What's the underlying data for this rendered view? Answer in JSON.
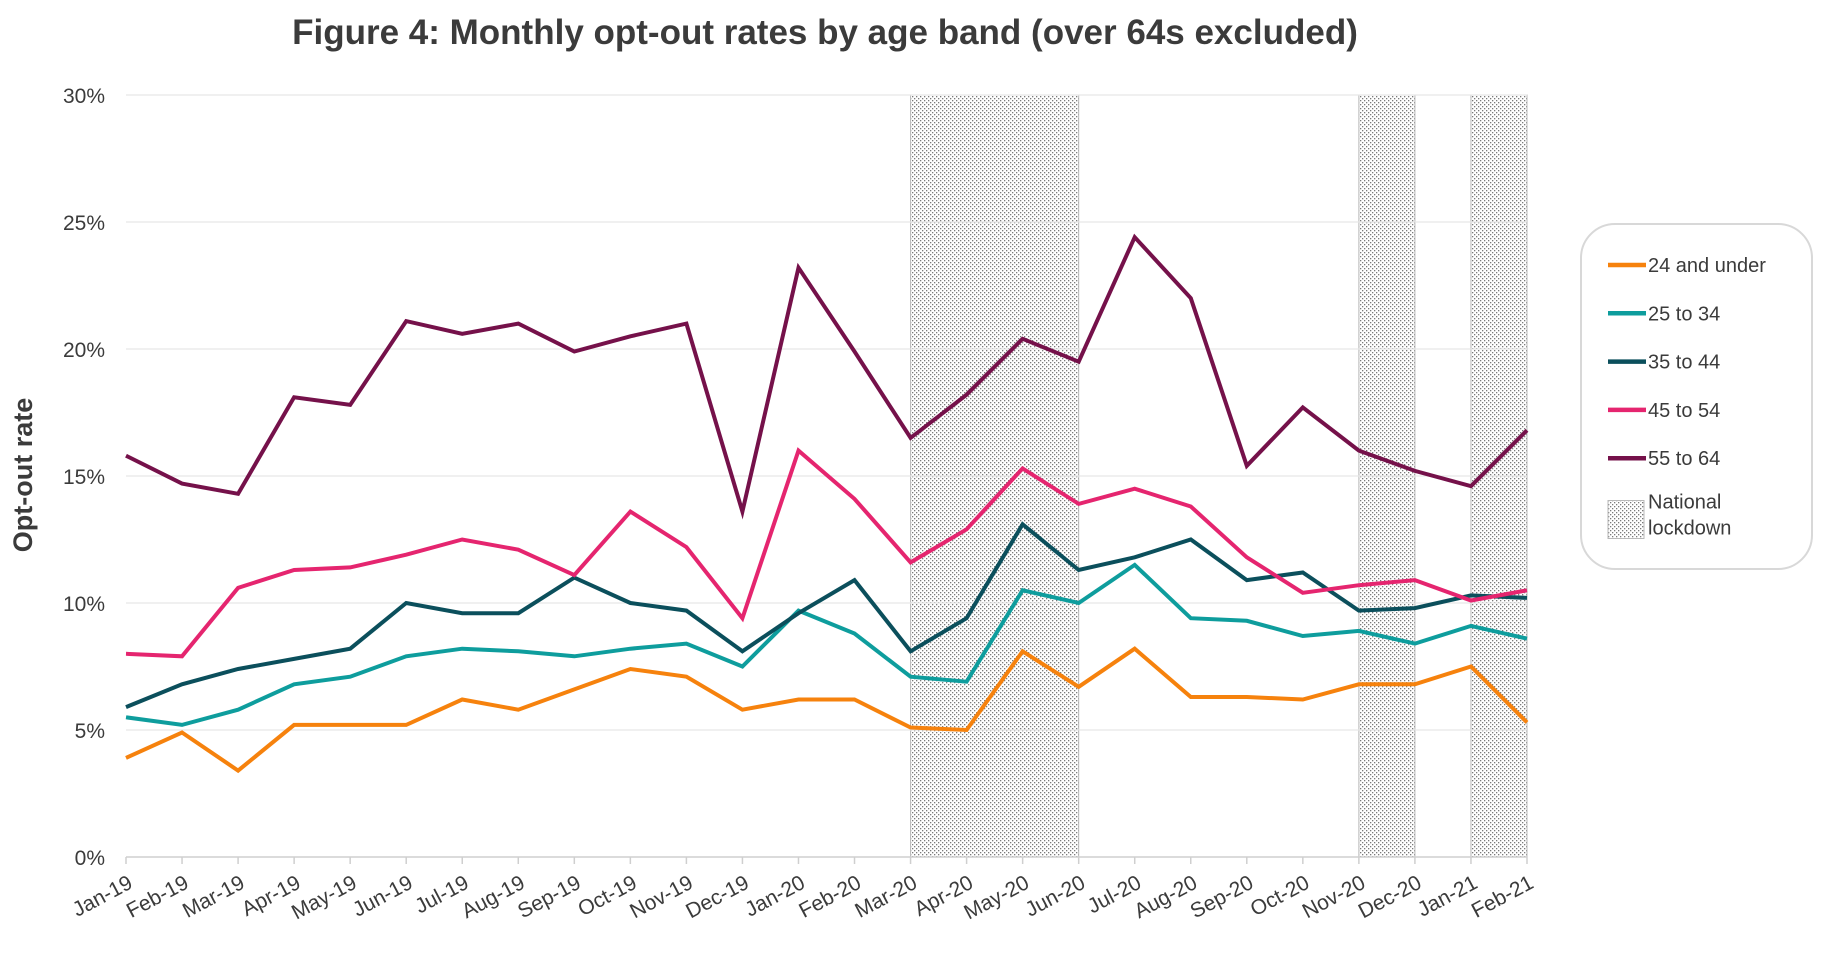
{
  "chart_data": {
    "type": "line",
    "title": "Figure 4: Monthly opt-out rates by age band (over 64s excluded)",
    "xlabel": "",
    "ylabel": "Opt-out rate",
    "ylim": [
      0,
      30
    ],
    "y_ticks": [
      "0%",
      "5%",
      "10%",
      "15%",
      "20%",
      "25%",
      "30%"
    ],
    "y_tick_values": [
      0,
      5,
      10,
      15,
      20,
      25,
      30
    ],
    "grid": "horizontal",
    "legend_position": "right",
    "categories": [
      "Jan-19",
      "Feb-19",
      "Mar-19",
      "Apr-19",
      "May-19",
      "Jun-19",
      "Jul-19",
      "Aug-19",
      "Sep-19",
      "Oct-19",
      "Nov-19",
      "Dec-19",
      "Jan-20",
      "Feb-20",
      "Mar-20",
      "Apr-20",
      "May-20",
      "Jun-20",
      "Jul-20",
      "Aug-20",
      "Sep-20",
      "Oct-20",
      "Nov-20",
      "Dec-20",
      "Jan-21",
      "Feb-21"
    ],
    "series": [
      {
        "name": "24 and under",
        "color": "#F6820D",
        "values": [
          3.9,
          4.9,
          3.4,
          5.2,
          5.2,
          5.2,
          6.2,
          5.8,
          6.6,
          7.4,
          7.1,
          5.8,
          6.2,
          6.2,
          5.1,
          5.0,
          8.1,
          6.7,
          8.2,
          6.3,
          6.3,
          6.2,
          6.8,
          6.8,
          7.5,
          5.3
        ]
      },
      {
        "name": "25 to 34",
        "color": "#0E9D9D",
        "values": [
          5.5,
          5.2,
          5.8,
          6.8,
          7.1,
          7.9,
          8.2,
          8.1,
          7.9,
          8.2,
          8.4,
          7.5,
          9.7,
          8.8,
          7.1,
          6.9,
          10.5,
          10.0,
          11.5,
          9.4,
          9.3,
          8.7,
          8.9,
          8.4,
          9.1,
          8.6
        ]
      },
      {
        "name": "35 to 44",
        "color": "#0B4F5C",
        "values": [
          5.9,
          6.8,
          7.4,
          7.8,
          8.2,
          10.0,
          9.6,
          9.6,
          11.0,
          10.0,
          9.7,
          8.1,
          9.6,
          10.9,
          8.1,
          9.4,
          13.1,
          11.3,
          11.8,
          12.5,
          10.9,
          11.2,
          9.7,
          9.8,
          10.3,
          10.2
        ]
      },
      {
        "name": "45 to 54",
        "color": "#E5256F",
        "values": [
          8.0,
          7.9,
          10.6,
          11.3,
          11.4,
          11.9,
          12.5,
          12.1,
          11.1,
          13.6,
          12.2,
          9.4,
          16.0,
          14.1,
          11.6,
          12.9,
          15.3,
          13.9,
          14.5,
          13.8,
          11.8,
          10.4,
          10.7,
          10.9,
          10.1,
          10.5
        ]
      },
      {
        "name": "55 to 64",
        "color": "#75114A",
        "values": [
          15.8,
          14.7,
          14.3,
          18.1,
          17.8,
          21.1,
          20.6,
          21.0,
          19.9,
          20.5,
          21.0,
          13.6,
          23.2,
          19.9,
          16.5,
          18.2,
          20.4,
          19.5,
          24.4,
          22.0,
          15.4,
          17.7,
          16.0,
          15.2,
          14.6,
          16.8
        ]
      }
    ],
    "shaded_periods": [
      {
        "label": "National lockdown",
        "start": "Mar-20",
        "end": "Jun-20"
      },
      {
        "label": "National lockdown",
        "start": "Nov-20",
        "end": "Dec-20"
      },
      {
        "label": "National lockdown",
        "start": "Jan-21",
        "end": "Feb-21"
      }
    ],
    "legend": [
      {
        "label": "24 and under",
        "kind": "line",
        "color": "#F6820D"
      },
      {
        "label": "25 to 34",
        "kind": "line",
        "color": "#0E9D9D"
      },
      {
        "label": "35 to 44",
        "kind": "line",
        "color": "#0B4F5C"
      },
      {
        "label": "45 to 54",
        "kind": "line",
        "color": "#E5256F"
      },
      {
        "label": "55 to 64",
        "kind": "line",
        "color": "#75114A"
      },
      {
        "label": "National lockdown",
        "label_lines": [
          "National",
          "lockdown"
        ],
        "kind": "hatch"
      }
    ]
  }
}
